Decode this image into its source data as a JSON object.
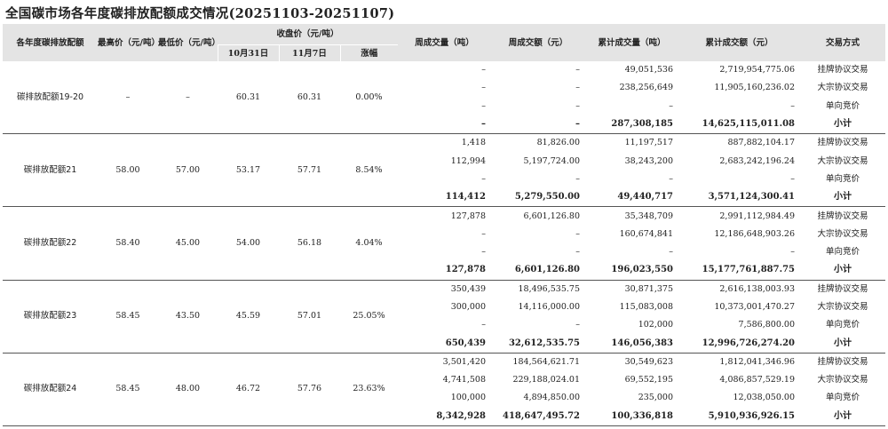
{
  "title": "全国碳市场各年度碳排放配额成交情况(20251103-20251107)",
  "headers": {
    "product": "各年度碳排放配额",
    "max_price": "最高价（元/吨）",
    "min_price": "最低价（元/吨）",
    "close_price": "收盘价（元/吨）",
    "close_oct31": "10月31日",
    "close_nov7": "11月7日",
    "change": "涨幅",
    "weekly_volume": "周成交量（吨）",
    "weekly_amount": "周成交额（元）",
    "cum_volume": "累计成交量（吨）",
    "cum_amount": "累计成交额（元）",
    "method": "交易方式"
  },
  "groups": [
    {
      "name": "碳排放配额19-20",
      "max": "–",
      "min": "–",
      "oct31": "60.31",
      "nov7": "60.31",
      "change": "0.00%",
      "rows": [
        {
          "wv": "–",
          "wa": "–",
          "cv": "49,051,536",
          "ca": "2,719,954,775.06",
          "method": "挂牌协议交易"
        },
        {
          "wv": "–",
          "wa": "–",
          "cv": "238,256,649",
          "ca": "11,905,160,236.02",
          "method": "大宗协议交易"
        },
        {
          "wv": "–",
          "wa": "–",
          "cv": "–",
          "ca": "–",
          "method": "单向竞价"
        },
        {
          "wv": "–",
          "wa": "–",
          "cv": "287,308,185",
          "ca": "14,625,115,011.08",
          "method": "小计"
        }
      ]
    },
    {
      "name": "碳排放配额21",
      "max": "58.00",
      "min": "57.00",
      "oct31": "53.17",
      "nov7": "57.71",
      "change": "8.54%",
      "rows": [
        {
          "wv": "1,418",
          "wa": "81,826.00",
          "cv": "11,197,517",
          "ca": "887,882,104.17",
          "method": "挂牌协议交易"
        },
        {
          "wv": "112,994",
          "wa": "5,197,724.00",
          "cv": "38,243,200",
          "ca": "2,683,242,196.24",
          "method": "大宗协议交易"
        },
        {
          "wv": "–",
          "wa": "–",
          "cv": "–",
          "ca": "–",
          "method": "单向竞价"
        },
        {
          "wv": "114,412",
          "wa": "5,279,550.00",
          "cv": "49,440,717",
          "ca": "3,571,124,300.41",
          "method": "小计"
        }
      ]
    },
    {
      "name": "碳排放配额22",
      "max": "58.40",
      "min": "45.00",
      "oct31": "54.00",
      "nov7": "56.18",
      "change": "4.04%",
      "rows": [
        {
          "wv": "127,878",
          "wa": "6,601,126.80",
          "cv": "35,348,709",
          "ca": "2,991,112,984.49",
          "method": "挂牌协议交易"
        },
        {
          "wv": "–",
          "wa": "–",
          "cv": "160,674,841",
          "ca": "12,186,648,903.26",
          "method": "大宗协议交易"
        },
        {
          "wv": "–",
          "wa": "–",
          "cv": "–",
          "ca": "–",
          "method": "单向竞价"
        },
        {
          "wv": "127,878",
          "wa": "6,601,126.80",
          "cv": "196,023,550",
          "ca": "15,177,761,887.75",
          "method": "小计"
        }
      ]
    },
    {
      "name": "碳排放配额23",
      "max": "58.45",
      "min": "43.50",
      "oct31": "45.59",
      "nov7": "57.01",
      "change": "25.05%",
      "rows": [
        {
          "wv": "350,439",
          "wa": "18,496,535.75",
          "cv": "30,871,375",
          "ca": "2,616,138,003.93",
          "method": "挂牌协议交易"
        },
        {
          "wv": "300,000",
          "wa": "14,116,000.00",
          "cv": "115,083,008",
          "ca": "10,373,001,470.27",
          "method": "大宗协议交易"
        },
        {
          "wv": "–",
          "wa": "–",
          "cv": "102,000",
          "ca": "7,586,800.00",
          "method": "单向竞价"
        },
        {
          "wv": "650,439",
          "wa": "32,612,535.75",
          "cv": "146,056,383",
          "ca": "12,996,726,274.20",
          "method": "小计"
        }
      ]
    },
    {
      "name": "碳排放配额24",
      "max": "58.45",
      "min": "48.00",
      "oct31": "46.72",
      "nov7": "57.76",
      "change": "23.63%",
      "rows": [
        {
          "wv": "3,501,420",
          "wa": "184,564,621.71",
          "cv": "30,549,623",
          "ca": "1,812,041,346.96",
          "method": "挂牌协议交易"
        },
        {
          "wv": "4,741,508",
          "wa": "229,188,024.01",
          "cv": "69,552,195",
          "ca": "4,086,857,529.19",
          "method": "大宗协议交易"
        },
        {
          "wv": "100,000",
          "wa": "4,894,850.00",
          "cv": "235,000",
          "ca": "12,038,050.00",
          "method": "单向竞价"
        },
        {
          "wv": "8,342,928",
          "wa": "418,647,495.72",
          "cv": "100,336,818",
          "ca": "5,910,936,926.15",
          "method": "小计"
        }
      ]
    }
  ]
}
